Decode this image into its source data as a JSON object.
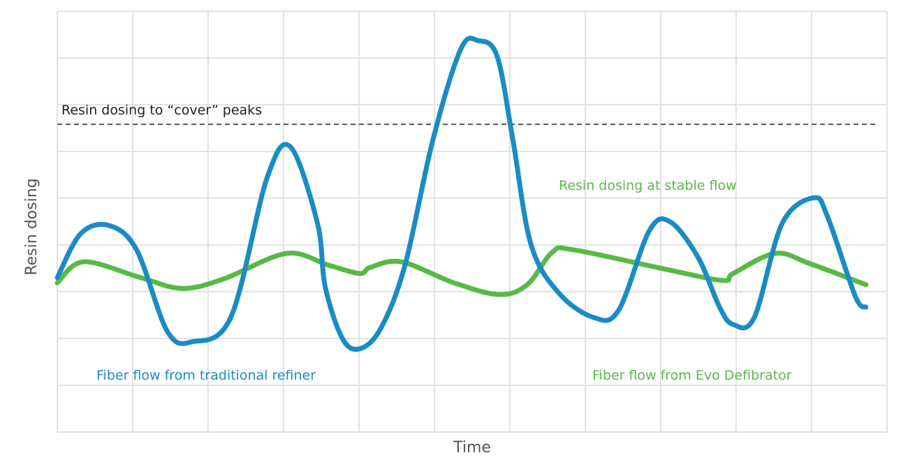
{
  "chart_data": {
    "type": "line",
    "title": "",
    "xlabel": "Time",
    "ylabel": "Resin dosing",
    "xlim": [
      0,
      11
    ],
    "ylim": [
      0,
      9
    ],
    "grid": true,
    "colors": {
      "traditional": "#1a8cc4",
      "evo": "#58b947",
      "reference": "#555555",
      "grid": "#e2e2e2"
    },
    "reference_line": {
      "label": "Resin dosing to “cover” peaks",
      "y": 6.58,
      "style": "dashed"
    },
    "annotations": {
      "stable_flow": "Resin dosing at stable flow"
    },
    "series": [
      {
        "name": "Fiber flow from traditional refiner",
        "color": "#1a8cc4",
        "points": [
          [
            0,
            3.3
          ],
          [
            0.31,
            4.24
          ],
          [
            0.68,
            4.42
          ],
          [
            1.05,
            3.9
          ],
          [
            1.46,
            2.15
          ],
          [
            1.79,
            1.93
          ],
          [
            2.3,
            2.45
          ],
          [
            2.78,
            5.43
          ],
          [
            3.09,
            6.1
          ],
          [
            3.45,
            4.46
          ],
          [
            3.55,
            3.12
          ],
          [
            3.78,
            2.0
          ],
          [
            4.01,
            1.78
          ],
          [
            4.29,
            2.22
          ],
          [
            4.61,
            3.57
          ],
          [
            4.98,
            6.25
          ],
          [
            5.35,
            8.19
          ],
          [
            5.58,
            8.37
          ],
          [
            5.83,
            8.04
          ],
          [
            6.04,
            6.25
          ],
          [
            6.28,
            4.01
          ],
          [
            6.65,
            2.97
          ],
          [
            7.11,
            2.45
          ],
          [
            7.44,
            2.6
          ],
          [
            7.85,
            4.31
          ],
          [
            8.13,
            4.49
          ],
          [
            8.5,
            3.72
          ],
          [
            8.78,
            2.67
          ],
          [
            8.96,
            2.3
          ],
          [
            9.24,
            2.45
          ],
          [
            9.61,
            4.46
          ],
          [
            10.03,
            5.01
          ],
          [
            10.21,
            4.61
          ],
          [
            10.58,
            2.9
          ],
          [
            10.72,
            2.67
          ]
        ]
      },
      {
        "name": "Fiber flow from Evo Defibrator",
        "color": "#58b947",
        "points": [
          [
            0,
            3.19
          ],
          [
            0.35,
            3.64
          ],
          [
            1.09,
            3.31
          ],
          [
            1.65,
            3.07
          ],
          [
            2.2,
            3.27
          ],
          [
            3.04,
            3.82
          ],
          [
            3.59,
            3.57
          ],
          [
            4.01,
            3.39
          ],
          [
            4.15,
            3.52
          ],
          [
            4.56,
            3.64
          ],
          [
            5.26,
            3.19
          ],
          [
            5.86,
            2.94
          ],
          [
            6.23,
            3.15
          ],
          [
            6.56,
            3.84
          ],
          [
            6.83,
            3.9
          ],
          [
            8.04,
            3.49
          ],
          [
            8.82,
            3.24
          ],
          [
            8.96,
            3.39
          ],
          [
            9.52,
            3.82
          ],
          [
            9.98,
            3.6
          ],
          [
            10.72,
            3.15
          ]
        ]
      }
    ]
  }
}
